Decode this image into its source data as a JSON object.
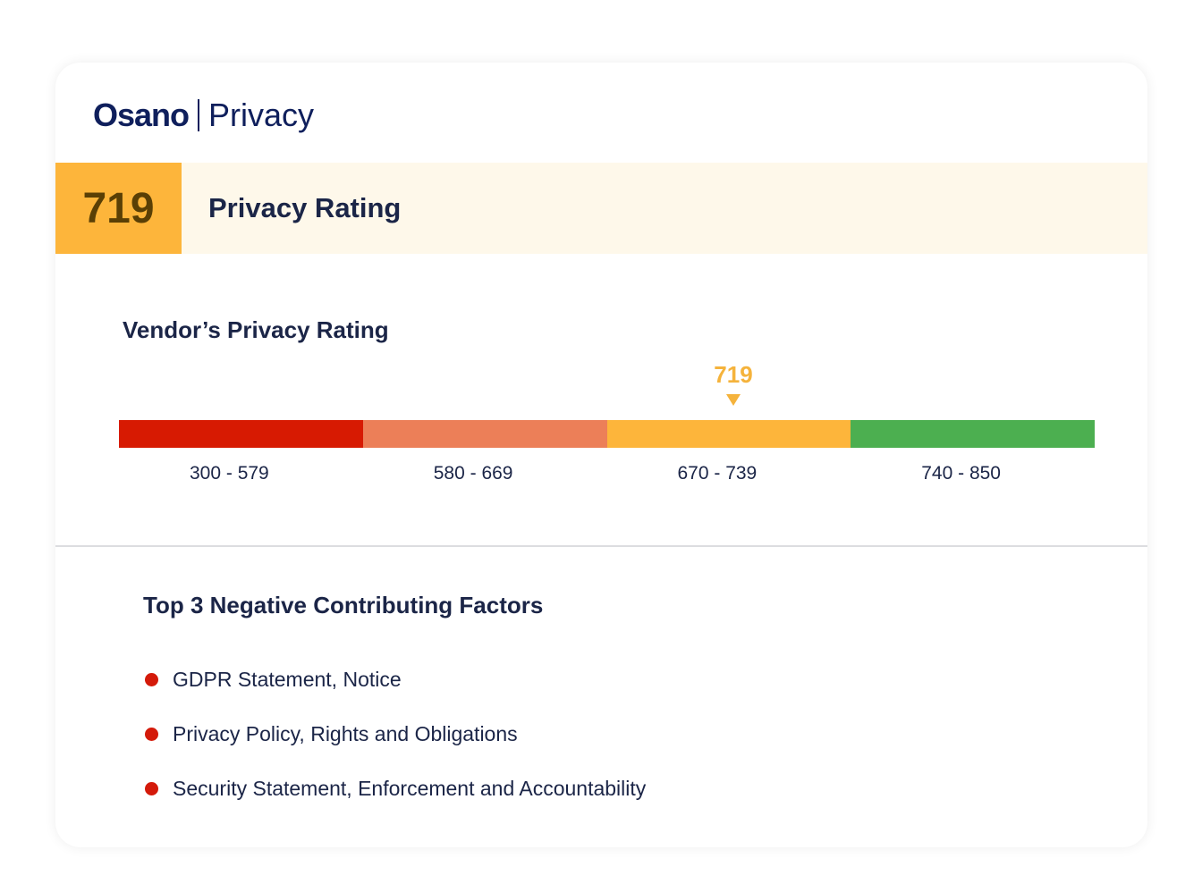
{
  "header": {
    "brand": "Osano",
    "product": "Privacy"
  },
  "rating": {
    "score": "719",
    "title": "Privacy Rating",
    "color": "#fdb53b"
  },
  "scale": {
    "title": "Vendor’s Privacy Rating",
    "marker_value": "719",
    "segments": [
      {
        "label": "300 - 579",
        "color": "#d71a02"
      },
      {
        "label": "580 - 669",
        "color": "#ec7f58"
      },
      {
        "label": "670 - 739",
        "color": "#fdb53b"
      },
      {
        "label": "740 - 850",
        "color": "#4caf50"
      }
    ]
  },
  "factors": {
    "title": "Top 3 Negative Contributing Factors",
    "items": [
      "GDPR Statement, Notice",
      "Privacy Policy, Rights and Obligations",
      "Security Statement, Enforcement and Accountability"
    ]
  }
}
